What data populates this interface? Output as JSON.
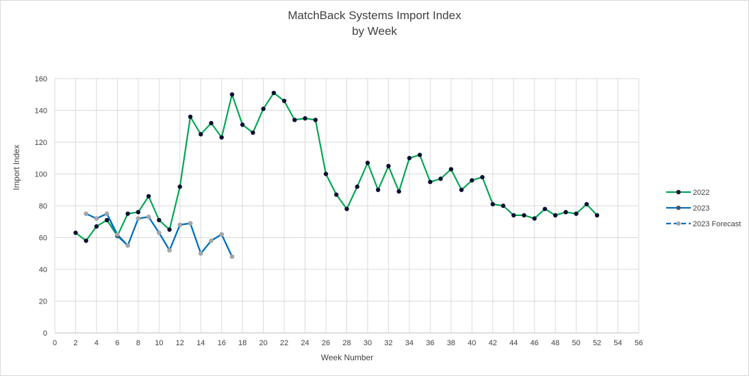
{
  "chart_data": {
    "type": "line",
    "title": "MatchBack Systems Import Index",
    "subtitle": "by Week",
    "xlabel": "Week Number",
    "ylabel": "Import Index",
    "xlim": [
      0,
      56
    ],
    "ylim": [
      0,
      160
    ],
    "x_ticks": [
      0,
      2,
      4,
      6,
      8,
      10,
      12,
      14,
      16,
      18,
      20,
      22,
      24,
      26,
      28,
      30,
      32,
      34,
      36,
      38,
      40,
      42,
      44,
      46,
      48,
      50,
      52,
      54,
      56
    ],
    "y_ticks": [
      0,
      20,
      40,
      60,
      80,
      100,
      120,
      140,
      160
    ],
    "grid": true,
    "legend_position": "right",
    "series": [
      {
        "name": "2022",
        "color": "#00a651",
        "marker_color": "#0d1033",
        "dashed": false,
        "x": [
          2,
          3,
          4,
          5,
          6,
          7,
          8,
          9,
          10,
          11,
          12,
          13,
          14,
          15,
          16,
          17,
          18,
          19,
          20,
          21,
          22,
          23,
          24,
          25,
          26,
          27,
          28,
          29,
          30,
          31,
          32,
          33,
          34,
          35,
          36,
          37,
          38,
          39,
          40,
          41,
          42,
          43,
          44,
          45,
          46,
          47,
          48,
          49,
          50,
          51,
          52
        ],
        "values": [
          63,
          58,
          67,
          71,
          61,
          75,
          76,
          86,
          71,
          65,
          92,
          136,
          125,
          132,
          123,
          150,
          131,
          126,
          141,
          151,
          146,
          134,
          135,
          134,
          100,
          87,
          78,
          92,
          107,
          90,
          105,
          89,
          110,
          112,
          95,
          97,
          103,
          90,
          96,
          98,
          81,
          80,
          74,
          74,
          72,
          78,
          74,
          76,
          75,
          81,
          74
        ]
      },
      {
        "name": "2023",
        "color": "#0070c0",
        "marker_color": "#44546a",
        "dashed": false,
        "x": [
          3,
          4,
          5,
          6,
          7,
          8,
          9,
          10,
          11,
          12,
          13,
          14,
          15,
          16,
          17
        ],
        "values": [
          75,
          72,
          75,
          61,
          55,
          72,
          73,
          63,
          52,
          68,
          69,
          50,
          58,
          62,
          48
        ]
      },
      {
        "name": "2023 Forecast",
        "color": "#0070c0",
        "marker_color": "#a6a6a6",
        "dashed": true,
        "x": [
          3,
          4,
          5,
          6,
          7,
          8,
          9,
          10,
          11,
          12,
          13,
          14,
          15,
          16,
          17
        ],
        "values": [
          75,
          72,
          75,
          62,
          55,
          72,
          73,
          63,
          52,
          68,
          69,
          50,
          58,
          62,
          48
        ]
      }
    ]
  }
}
